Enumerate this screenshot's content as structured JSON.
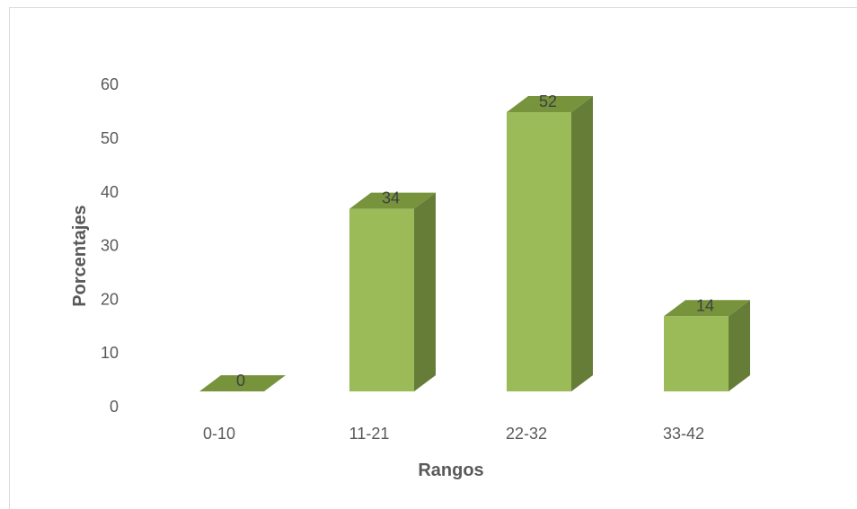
{
  "chart_data": {
    "type": "bar",
    "title": "",
    "categories": [
      "0-10",
      "11-21",
      "22-32",
      "33-42"
    ],
    "values": [
      0,
      34,
      52,
      14
    ],
    "data_labels": [
      "0",
      "34",
      "52",
      "14"
    ],
    "xlabel": "Rangos",
    "ylabel": "Porcentajes",
    "ylim": [
      0,
      60
    ],
    "yticks": [
      "0",
      "10",
      "20",
      "30",
      "40",
      "50",
      "60"
    ],
    "grid": false,
    "legend": "none",
    "style": "3d-column",
    "colors": {
      "front": "#9bbb59",
      "side": "#667d38",
      "top": "#77933c",
      "frame": "#d9d9d9"
    }
  }
}
